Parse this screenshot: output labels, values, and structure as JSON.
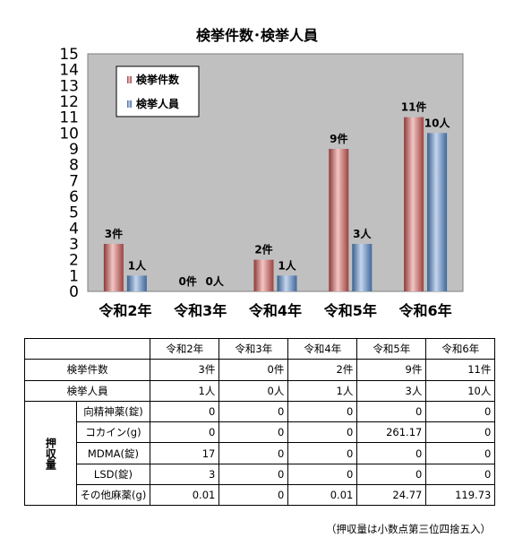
{
  "chart_data": {
    "type": "bar",
    "title": "検挙件数･検挙人員",
    "categories": [
      "令和2年",
      "令和3年",
      "令和4年",
      "令和5年",
      "令和6年"
    ],
    "series": [
      {
        "name": "検挙件数",
        "values": [
          3,
          0,
          2,
          9,
          11
        ],
        "labels": [
          "3件",
          "0件",
          "2件",
          "9件",
          "11件"
        ],
        "color": "#c0504d"
      },
      {
        "name": "検挙人員",
        "values": [
          1,
          0,
          1,
          3,
          10
        ],
        "labels": [
          "1人",
          "0人",
          "1人",
          "3人",
          "10人"
        ],
        "color": "#4f81bd"
      }
    ],
    "ylim": [
      0,
      15
    ],
    "yticks": [
      "0",
      "1",
      "2",
      "3",
      "4",
      "5",
      "6",
      "7",
      "8",
      "9",
      "10",
      "11",
      "12",
      "13",
      "14",
      "15"
    ],
    "plot_background": "#c0c0c0",
    "legend_position": "top-left"
  },
  "table": {
    "headers": [
      "令和2年",
      "令和3年",
      "令和4年",
      "令和5年",
      "令和6年"
    ],
    "count_rows": [
      {
        "label": "検挙件数",
        "values": [
          "3件",
          "0件",
          "2件",
          "9件",
          "11件"
        ]
      },
      {
        "label": "検挙人員",
        "values": [
          "1人",
          "0人",
          "1人",
          "3人",
          "10人"
        ]
      }
    ],
    "seizure_group_label": "押収量",
    "seizure_rows": [
      {
        "label": "向精神薬(錠)",
        "values": [
          "0",
          "0",
          "0",
          "0",
          "0"
        ]
      },
      {
        "label": "コカイン(g)",
        "values": [
          "0",
          "0",
          "0",
          "261.17",
          "0"
        ]
      },
      {
        "label": "MDMA(錠)",
        "values": [
          "17",
          "0",
          "0",
          "0",
          "0"
        ]
      },
      {
        "label": "LSD(錠)",
        "values": [
          "3",
          "0",
          "0",
          "0",
          "0"
        ]
      },
      {
        "label": "その他麻薬(g)",
        "values": [
          "0.01",
          "0",
          "0.01",
          "24.77",
          "119.73"
        ]
      }
    ],
    "footnote": "（押収量は小数点第三位四捨五入）"
  }
}
